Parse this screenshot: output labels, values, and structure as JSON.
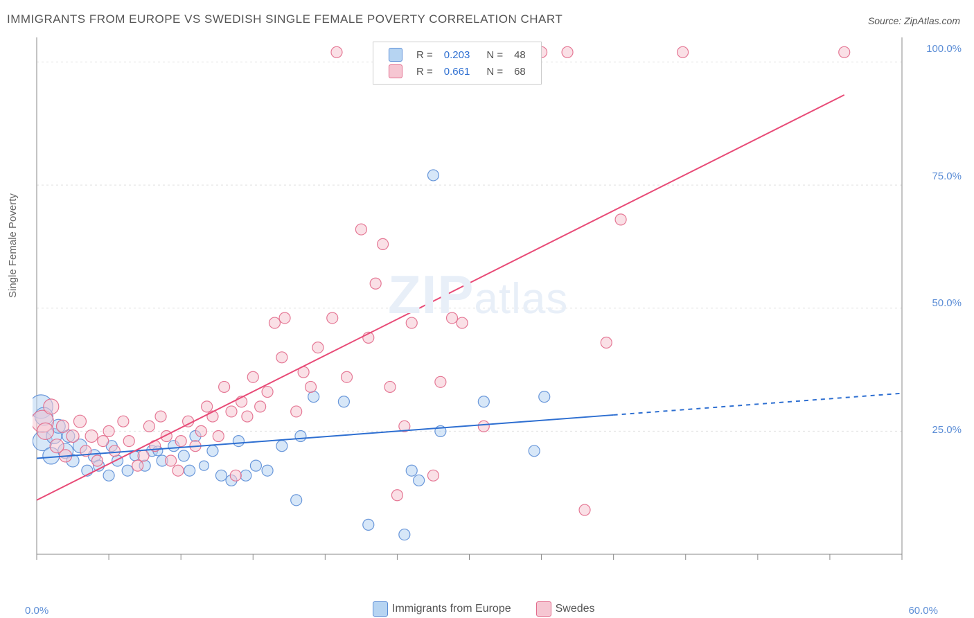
{
  "title": "IMMIGRANTS FROM EUROPE VS SWEDISH SINGLE FEMALE POVERTY CORRELATION CHART",
  "source": "Source: ZipAtlas.com",
  "ylabel": "Single Female Poverty",
  "watermark_text": "ZIPatlas",
  "chart": {
    "type": "scatter",
    "xlim": [
      0,
      60
    ],
    "ylim": [
      0,
      105
    ],
    "xtick_labels": {
      "0": "0.0%",
      "60": "60.0%"
    },
    "xtick_positions": [
      0,
      5,
      10,
      15,
      20,
      25,
      30,
      35,
      40,
      45,
      50,
      55,
      60
    ],
    "ytick_labels": {
      "25": "25.0%",
      "50": "50.0%",
      "75": "75.0%",
      "100": "100.0%"
    },
    "ytick_positions": [
      25,
      50,
      75,
      100
    ],
    "grid_color": "#e0e0e0",
    "background_color": "#ffffff",
    "axis_color": "#888888",
    "series": [
      {
        "name": "Immigrants from Europe",
        "color_fill": "#b6d4f2",
        "color_stroke": "#5b8dd6",
        "fill_opacity": 0.55,
        "trend": {
          "slope": 0.22,
          "intercept": 19.5,
          "x_solid_end": 40,
          "x_dash_end": 60,
          "color": "#2e6fd1",
          "width": 2
        },
        "points": [
          {
            "x": 0.3,
            "y": 30,
            "r": 17
          },
          {
            "x": 0.4,
            "y": 23,
            "r": 14
          },
          {
            "x": 0.5,
            "y": 28,
            "r": 13
          },
          {
            "x": 1.0,
            "y": 20,
            "r": 12
          },
          {
            "x": 1.2,
            "y": 24,
            "r": 11
          },
          {
            "x": 1.5,
            "y": 26,
            "r": 10
          },
          {
            "x": 2.0,
            "y": 21,
            "r": 11
          },
          {
            "x": 2.2,
            "y": 24,
            "r": 9
          },
          {
            "x": 2.5,
            "y": 19,
            "r": 9
          },
          {
            "x": 3.0,
            "y": 22,
            "r": 10
          },
          {
            "x": 3.5,
            "y": 17,
            "r": 8
          },
          {
            "x": 4.0,
            "y": 20,
            "r": 9
          },
          {
            "x": 4.3,
            "y": 18,
            "r": 8
          },
          {
            "x": 5.0,
            "y": 16,
            "r": 8
          },
          {
            "x": 5.2,
            "y": 22,
            "r": 8
          },
          {
            "x": 5.6,
            "y": 19,
            "r": 8
          },
          {
            "x": 6.3,
            "y": 17,
            "r": 8
          },
          {
            "x": 6.8,
            "y": 20,
            "r": 7
          },
          {
            "x": 7.5,
            "y": 18,
            "r": 8
          },
          {
            "x": 8.0,
            "y": 21,
            "r": 8
          },
          {
            "x": 8.4,
            "y": 21,
            "r": 7
          },
          {
            "x": 8.7,
            "y": 19,
            "r": 8
          },
          {
            "x": 9.5,
            "y": 22,
            "r": 8
          },
          {
            "x": 10.2,
            "y": 20,
            "r": 8
          },
          {
            "x": 10.6,
            "y": 17,
            "r": 8
          },
          {
            "x": 11.0,
            "y": 24,
            "r": 8
          },
          {
            "x": 11.6,
            "y": 18,
            "r": 7
          },
          {
            "x": 12.2,
            "y": 21,
            "r": 8
          },
          {
            "x": 12.8,
            "y": 16,
            "r": 8
          },
          {
            "x": 13.5,
            "y": 15,
            "r": 8
          },
          {
            "x": 14.0,
            "y": 23,
            "r": 8
          },
          {
            "x": 14.5,
            "y": 16,
            "r": 8
          },
          {
            "x": 15.2,
            "y": 18,
            "r": 8
          },
          {
            "x": 16.0,
            "y": 17,
            "r": 8
          },
          {
            "x": 17.0,
            "y": 22,
            "r": 8
          },
          {
            "x": 18.0,
            "y": 11,
            "r": 8
          },
          {
            "x": 18.3,
            "y": 24,
            "r": 8
          },
          {
            "x": 19.2,
            "y": 32,
            "r": 8
          },
          {
            "x": 21.3,
            "y": 31,
            "r": 8
          },
          {
            "x": 23.0,
            "y": 6,
            "r": 8
          },
          {
            "x": 25.5,
            "y": 4,
            "r": 8
          },
          {
            "x": 26.0,
            "y": 17,
            "r": 8
          },
          {
            "x": 26.5,
            "y": 15,
            "r": 8
          },
          {
            "x": 27.5,
            "y": 77,
            "r": 8
          },
          {
            "x": 28.0,
            "y": 25,
            "r": 8
          },
          {
            "x": 31.0,
            "y": 31,
            "r": 8
          },
          {
            "x": 34.5,
            "y": 21,
            "r": 8
          },
          {
            "x": 35.2,
            "y": 32,
            "r": 8
          }
        ]
      },
      {
        "name": "Swedes",
        "color_fill": "#f6c6d2",
        "color_stroke": "#e26a8b",
        "fill_opacity": 0.55,
        "trend": {
          "slope": 1.47,
          "intercept": 11,
          "x_solid_end": 56,
          "x_dash_end": 56,
          "color": "#e84b77",
          "width": 2
        },
        "points": [
          {
            "x": 0.4,
            "y": 27,
            "r": 16
          },
          {
            "x": 0.6,
            "y": 25,
            "r": 12
          },
          {
            "x": 1.0,
            "y": 30,
            "r": 11
          },
          {
            "x": 1.4,
            "y": 22,
            "r": 10
          },
          {
            "x": 1.8,
            "y": 26,
            "r": 9
          },
          {
            "x": 2.0,
            "y": 20,
            "r": 9
          },
          {
            "x": 2.5,
            "y": 24,
            "r": 9
          },
          {
            "x": 3.0,
            "y": 27,
            "r": 9
          },
          {
            "x": 3.4,
            "y": 21,
            "r": 8
          },
          {
            "x": 3.8,
            "y": 24,
            "r": 9
          },
          {
            "x": 4.2,
            "y": 19,
            "r": 8
          },
          {
            "x": 4.6,
            "y": 23,
            "r": 8
          },
          {
            "x": 5.0,
            "y": 25,
            "r": 8
          },
          {
            "x": 5.4,
            "y": 21,
            "r": 8
          },
          {
            "x": 6.0,
            "y": 27,
            "r": 8
          },
          {
            "x": 6.4,
            "y": 23,
            "r": 8
          },
          {
            "x": 7.0,
            "y": 18,
            "r": 8
          },
          {
            "x": 7.4,
            "y": 20,
            "r": 8
          },
          {
            "x": 7.8,
            "y": 26,
            "r": 8
          },
          {
            "x": 8.2,
            "y": 22,
            "r": 8
          },
          {
            "x": 8.6,
            "y": 28,
            "r": 8
          },
          {
            "x": 9.0,
            "y": 24,
            "r": 8
          },
          {
            "x": 9.3,
            "y": 19,
            "r": 8
          },
          {
            "x": 9.8,
            "y": 17,
            "r": 8
          },
          {
            "x": 10.0,
            "y": 23,
            "r": 8
          },
          {
            "x": 10.5,
            "y": 27,
            "r": 8
          },
          {
            "x": 11.0,
            "y": 22,
            "r": 8
          },
          {
            "x": 11.4,
            "y": 25,
            "r": 8
          },
          {
            "x": 11.8,
            "y": 30,
            "r": 8
          },
          {
            "x": 12.2,
            "y": 28,
            "r": 8
          },
          {
            "x": 12.6,
            "y": 24,
            "r": 8
          },
          {
            "x": 13.0,
            "y": 34,
            "r": 8
          },
          {
            "x": 13.5,
            "y": 29,
            "r": 8
          },
          {
            "x": 13.8,
            "y": 16,
            "r": 8
          },
          {
            "x": 14.2,
            "y": 31,
            "r": 8
          },
          {
            "x": 14.6,
            "y": 28,
            "r": 8
          },
          {
            "x": 15.0,
            "y": 36,
            "r": 8
          },
          {
            "x": 15.5,
            "y": 30,
            "r": 8
          },
          {
            "x": 16.0,
            "y": 33,
            "r": 8
          },
          {
            "x": 16.5,
            "y": 47,
            "r": 8
          },
          {
            "x": 17.0,
            "y": 40,
            "r": 8
          },
          {
            "x": 17.2,
            "y": 48,
            "r": 8
          },
          {
            "x": 18.0,
            "y": 29,
            "r": 8
          },
          {
            "x": 18.5,
            "y": 37,
            "r": 8
          },
          {
            "x": 19.0,
            "y": 34,
            "r": 8
          },
          {
            "x": 19.5,
            "y": 42,
            "r": 8
          },
          {
            "x": 20.5,
            "y": 48,
            "r": 8
          },
          {
            "x": 20.8,
            "y": 102,
            "r": 8
          },
          {
            "x": 21.5,
            "y": 36,
            "r": 8
          },
          {
            "x": 22.5,
            "y": 66,
            "r": 8
          },
          {
            "x": 23.0,
            "y": 44,
            "r": 8
          },
          {
            "x": 23.5,
            "y": 55,
            "r": 8
          },
          {
            "x": 24.0,
            "y": 63,
            "r": 8
          },
          {
            "x": 24.5,
            "y": 34,
            "r": 8
          },
          {
            "x": 25.0,
            "y": 12,
            "r": 8
          },
          {
            "x": 25.5,
            "y": 26,
            "r": 8
          },
          {
            "x": 26.0,
            "y": 47,
            "r": 8
          },
          {
            "x": 27.5,
            "y": 16,
            "r": 8
          },
          {
            "x": 28.0,
            "y": 35,
            "r": 8
          },
          {
            "x": 28.8,
            "y": 48,
            "r": 8
          },
          {
            "x": 29.5,
            "y": 47,
            "r": 8
          },
          {
            "x": 31.0,
            "y": 26,
            "r": 8
          },
          {
            "x": 35.0,
            "y": 102,
            "r": 8
          },
          {
            "x": 36.8,
            "y": 102,
            "r": 8
          },
          {
            "x": 38.0,
            "y": 9,
            "r": 8
          },
          {
            "x": 39.5,
            "y": 43,
            "r": 8
          },
          {
            "x": 40.5,
            "y": 68,
            "r": 8
          },
          {
            "x": 44.8,
            "y": 102,
            "r": 8
          },
          {
            "x": 56.0,
            "y": 102,
            "r": 8
          }
        ]
      }
    ]
  },
  "legend_top": {
    "rows": [
      {
        "swatch_fill": "#b6d4f2",
        "swatch_stroke": "#5b8dd6",
        "r_label": "R =",
        "r_value": "0.203",
        "n_label": "N =",
        "n_value": "48"
      },
      {
        "swatch_fill": "#f6c6d2",
        "swatch_stroke": "#e26a8b",
        "r_label": "R =",
        "r_value": " 0.661",
        "n_label": "N =",
        "n_value": "68"
      }
    ]
  },
  "legend_bottom": {
    "items": [
      {
        "swatch_fill": "#b6d4f2",
        "swatch_stroke": "#5b8dd6",
        "label": "Immigrants from Europe"
      },
      {
        "swatch_fill": "#f6c6d2",
        "swatch_stroke": "#e26a8b",
        "label": "Swedes"
      }
    ]
  }
}
